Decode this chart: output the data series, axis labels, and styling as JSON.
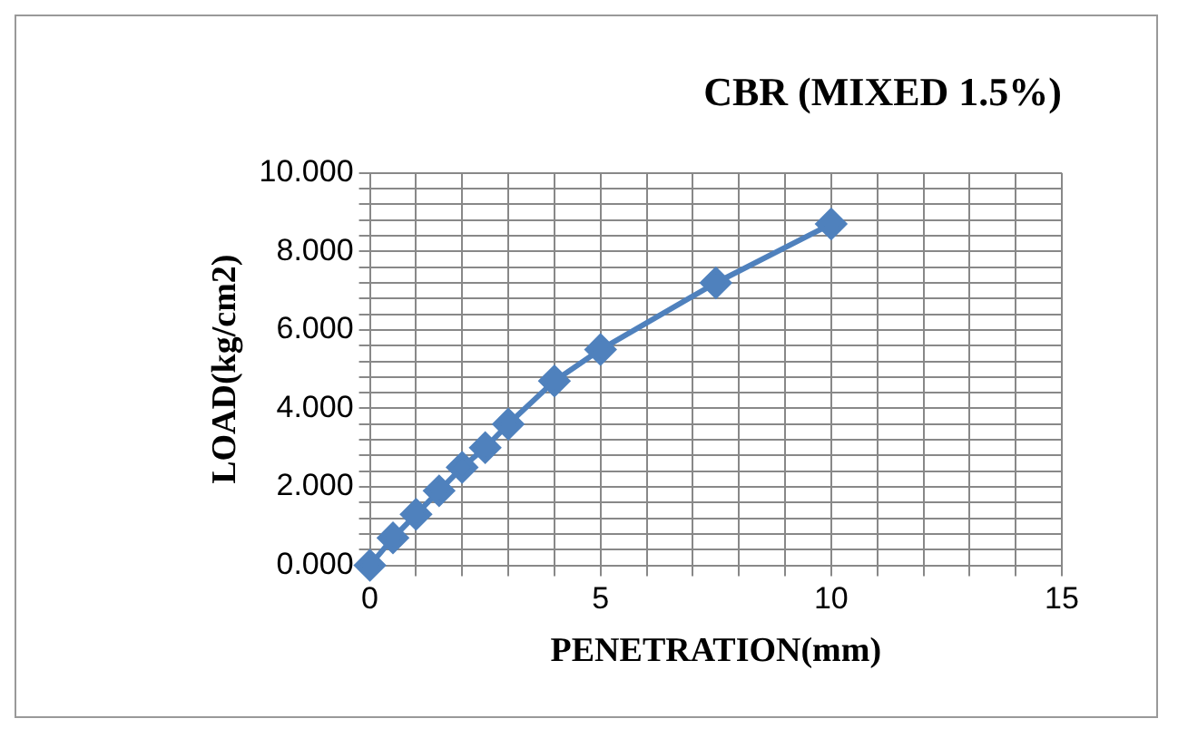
{
  "chart_data": {
    "type": "line",
    "title": "CBR (MIXED 1.5%)",
    "xlabel": "PENETRATION(mm)",
    "ylabel": "LOAD(kg/cm2)",
    "x": [
      0,
      0.5,
      1,
      1.5,
      2,
      2.5,
      3,
      4,
      5,
      7.5,
      10
    ],
    "series": [
      {
        "color": "#4f81bd",
        "values": [
          0,
          0.7,
          1.3,
          1.9,
          2.5,
          3.0,
          3.6,
          4.7,
          5.5,
          7.2,
          8.7
        ]
      }
    ],
    "xlim": [
      0,
      15
    ],
    "ylim": [
      0,
      10
    ],
    "xticks": [
      0,
      {
        "value": 1,
        "label": null
      },
      {
        "value": 2,
        "label": null
      },
      {
        "value": 3,
        "label": null
      },
      {
        "value": 4,
        "label": null
      },
      5,
      {
        "value": 6,
        "label": null
      },
      {
        "value": 7,
        "label": null
      },
      {
        "value": 8,
        "label": null
      },
      {
        "value": 9,
        "label": null
      },
      10,
      {
        "value": 11,
        "label": null
      },
      {
        "value": 12,
        "label": null
      },
      {
        "value": 13,
        "label": null
      },
      {
        "value": 14,
        "label": null
      },
      15
    ],
    "yticks": [
      {
        "value": 0,
        "label": "0.000"
      },
      {
        "value": 0.4,
        "label": null
      },
      {
        "value": 0.8,
        "label": null
      },
      {
        "value": 1.2,
        "label": null
      },
      {
        "value": 1.6,
        "label": null
      },
      {
        "value": 2,
        "label": "2.000"
      },
      {
        "value": 2.4,
        "label": null
      },
      {
        "value": 2.8,
        "label": null
      },
      {
        "value": 3.2,
        "label": null
      },
      {
        "value": 3.6,
        "label": null
      },
      {
        "value": 4,
        "label": "4.000"
      },
      {
        "value": 4.4,
        "label": null
      },
      {
        "value": 4.8,
        "label": null
      },
      {
        "value": 5.2,
        "label": null
      },
      {
        "value": 5.6,
        "label": null
      },
      {
        "value": 6,
        "label": "6.000"
      },
      {
        "value": 6.4,
        "label": null
      },
      {
        "value": 6.8,
        "label": null
      },
      {
        "value": 7.2,
        "label": null
      },
      {
        "value": 7.6,
        "label": null
      },
      {
        "value": 8,
        "label": "8.000"
      },
      {
        "value": 8.4,
        "label": null
      },
      {
        "value": 8.8,
        "label": null
      },
      {
        "value": 9.2,
        "label": null
      },
      {
        "value": 9.6,
        "label": null
      },
      {
        "value": 10,
        "label": "10.000"
      }
    ],
    "grid": true,
    "legend": false,
    "marker": "diamond",
    "line_style": "solid"
  }
}
